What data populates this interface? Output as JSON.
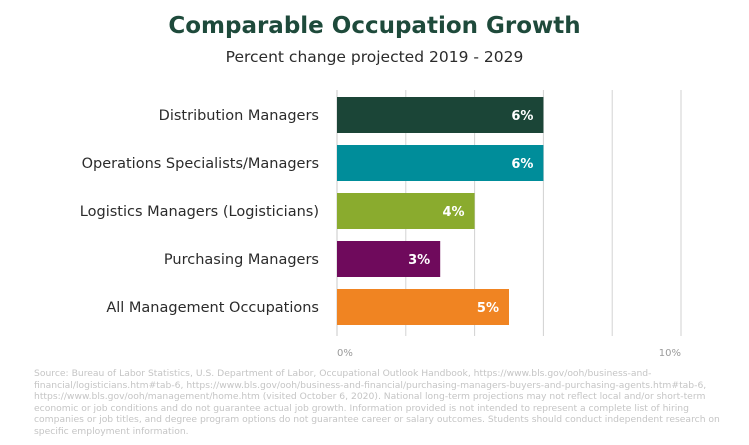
{
  "chart_data": {
    "type": "bar",
    "orientation": "horizontal",
    "title": "Comparable Occupation Growth",
    "subtitle": "Percent change projected 2019 - 2029",
    "categories": [
      "Distribution Managers",
      "Operations Specialists/Managers",
      "Logistics Managers (Logisticians)",
      "Purchasing Managers",
      "All Management Occupations"
    ],
    "values": [
      6,
      6,
      4,
      3,
      5
    ],
    "value_labels": [
      "6%",
      "6%",
      "4%",
      "3%",
      "5%"
    ],
    "colors": [
      "#1b4537",
      "#008d9a",
      "#8aab2e",
      "#6f0a5c",
      "#f08422"
    ],
    "xlim": [
      0,
      10
    ],
    "x_tick_labels": [
      "0%",
      "10%"
    ],
    "grid": true
  },
  "source_note": "Source: Bureau of Labor Statistics, U.S. Department of Labor, Occupational Outlook Handbook, https://www.bls.gov/ooh/business-and-financial/logisticians.htm#tab-6, https://www.bls.gov/ooh/business-and-financial/purchasing-managers-buyers-and-purchasing-agents.htm#tab-6, https://www.bls.gov/ooh/management/home.htm (visited October 6, 2020). National long-term projections may not reflect local and/or short-term economic or job conditions and do not guarantee actual job growth. Information provided is not intended to represent a complete list of hiring companies or job titles, and degree program options do not guarantee career or salary outcomes. Students should conduct independent research on specific employment information."
}
